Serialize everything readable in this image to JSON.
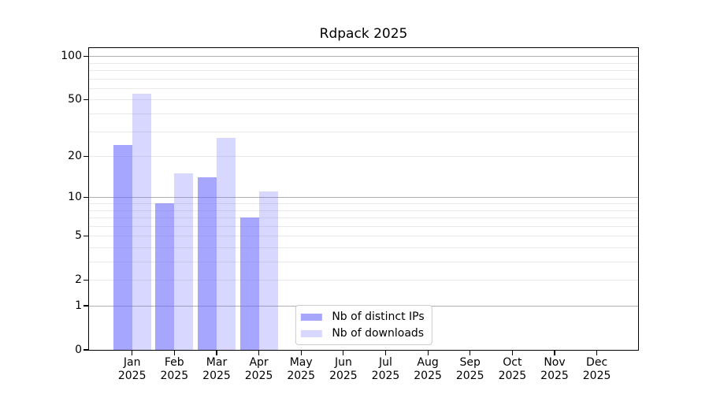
{
  "chart_data": {
    "type": "bar",
    "title": "Rdpack 2025",
    "categories": [
      "Jan 2025",
      "Feb 2025",
      "Mar 2025",
      "Apr 2025",
      "May 2025",
      "Jun 2025",
      "Jul 2025",
      "Aug 2025",
      "Sep 2025",
      "Oct 2025",
      "Nov 2025",
      "Dec 2025"
    ],
    "x_tick_labels": [
      {
        "month": "Jan",
        "year": "2025"
      },
      {
        "month": "Feb",
        "year": "2025"
      },
      {
        "month": "Mar",
        "year": "2025"
      },
      {
        "month": "Apr",
        "year": "2025"
      },
      {
        "month": "May",
        "year": "2025"
      },
      {
        "month": "Jun",
        "year": "2025"
      },
      {
        "month": "Jul",
        "year": "2025"
      },
      {
        "month": "Aug",
        "year": "2025"
      },
      {
        "month": "Sep",
        "year": "2025"
      },
      {
        "month": "Oct",
        "year": "2025"
      },
      {
        "month": "Nov",
        "year": "2025"
      },
      {
        "month": "Dec",
        "year": "2025"
      }
    ],
    "series": [
      {
        "name": "Nb of distinct IPs",
        "values": [
          24,
          9,
          14,
          7,
          null,
          null,
          null,
          null,
          null,
          null,
          null,
          null
        ],
        "bar_color": "rgba(102,102,255,0.58)"
      },
      {
        "name": "Nb of downloads",
        "values": [
          55,
          15,
          27,
          11,
          null,
          null,
          null,
          null,
          null,
          null,
          null,
          null
        ],
        "bar_color": "rgba(102,102,255,0.26)"
      }
    ],
    "y_axis": {
      "scale": "log10(x+1)",
      "ticks": [
        0,
        1,
        2,
        5,
        10,
        20,
        50,
        100
      ],
      "major_gridlines": [
        1,
        10,
        100
      ],
      "minor_gridlines": [
        2,
        3,
        4,
        5,
        6,
        7,
        8,
        9,
        20,
        30,
        40,
        50,
        60,
        70,
        80,
        90
      ],
      "range": [
        0,
        114
      ]
    },
    "legend": {
      "position": "lower center"
    },
    "grid": true
  },
  "colors": {
    "background": "#ffffff",
    "axis": "#000000",
    "text": "#000000",
    "grid_major": "#b0b0b0",
    "grid_minor": "#e9e9e9",
    "bar_distinct_ips_rendered": "#a9a9fc",
    "bar_downloads_rendered": "#d8d8fa",
    "legend_border": "#cccccc"
  }
}
